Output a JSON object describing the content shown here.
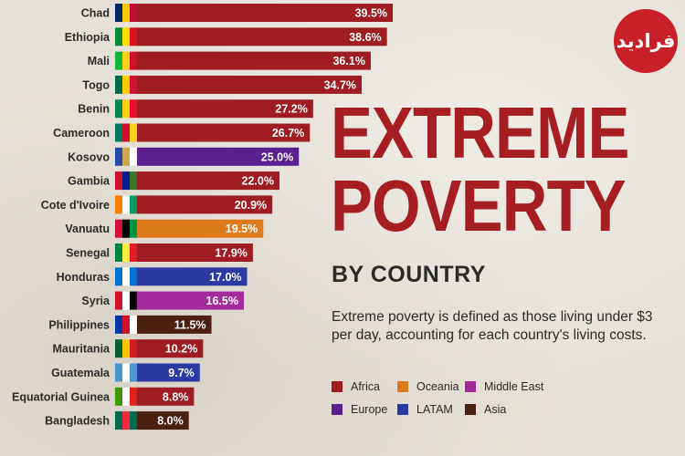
{
  "title": {
    "line1": "EXTREME",
    "line2": "POVERTY"
  },
  "subtitle": "BY COUNTRY",
  "description": "Extreme poverty is defined as those living under $3 per day, accounting for each country's living costs.",
  "logo_text": "فرادید",
  "legend": [
    {
      "name": "Africa",
      "color": "#9e1c22"
    },
    {
      "name": "Oceania",
      "color": "#dd7a1c"
    },
    {
      "name": "Middle East",
      "color": "#a52a9c"
    },
    {
      "name": "Europe",
      "color": "#5a2090"
    },
    {
      "name": "LATAM",
      "color": "#2b3aa3"
    },
    {
      "name": "Asia",
      "color": "#4a2010"
    }
  ],
  "chart_data": {
    "type": "bar",
    "orientation": "horizontal",
    "unit": "%",
    "categories": [
      "Chad",
      "Ethiopia",
      "Mali",
      "Togo",
      "Benin",
      "Cameroon",
      "Kosovo",
      "Gambia",
      "Cote d'Ivoire",
      "Vanuatu",
      "Senegal",
      "Honduras",
      "Syria",
      "Philippines",
      "Mauritania",
      "Guatemala",
      "Equatorial Guinea",
      "Bangladesh"
    ],
    "values": [
      39.5,
      38.6,
      36.1,
      34.7,
      27.2,
      26.7,
      25.0,
      22.0,
      20.9,
      19.5,
      17.9,
      17.0,
      16.5,
      11.5,
      10.2,
      9.7,
      8.8,
      8.0
    ],
    "value_labels": [
      "39.5%",
      "38.6%",
      "36.1%",
      "34.7%",
      "27.2%",
      "26.7%",
      "25.0%",
      "22.0%",
      "20.9%",
      "19.5%",
      "17.9%",
      "17.0%",
      "16.5%",
      "11.5%",
      "10.2%",
      "9.7%",
      "8.8%",
      "8.0%"
    ],
    "regions": [
      "Africa",
      "Africa",
      "Africa",
      "Africa",
      "Africa",
      "Africa",
      "Europe",
      "Africa",
      "Africa",
      "Oceania",
      "Africa",
      "LATAM",
      "Middle East",
      "Asia",
      "Africa",
      "LATAM",
      "Africa",
      "Asia"
    ],
    "flag_colors": [
      [
        "#002664",
        "#fecb00",
        "#c60c30"
      ],
      [
        "#078930",
        "#fcdd09",
        "#da121a"
      ],
      [
        "#14b53a",
        "#fcd116",
        "#ce1126"
      ],
      [
        "#006a4e",
        "#ffce00",
        "#d21034"
      ],
      [
        "#008751",
        "#fcd116",
        "#e8112d"
      ],
      [
        "#007a5e",
        "#ce1126",
        "#fcd116"
      ],
      [
        "#244aa5",
        "#d0a650",
        "#ffffff"
      ],
      [
        "#ce1126",
        "#0c1c8c",
        "#3a7728"
      ],
      [
        "#f77f00",
        "#ffffff",
        "#009e60"
      ],
      [
        "#d21034",
        "#000000",
        "#009543"
      ],
      [
        "#00853f",
        "#fdef42",
        "#e31b23"
      ],
      [
        "#0073cf",
        "#ffffff",
        "#0073cf"
      ],
      [
        "#ce1126",
        "#ffffff",
        "#000000"
      ],
      [
        "#0038a8",
        "#ce1126",
        "#ffffff"
      ],
      [
        "#006233",
        "#ffc400",
        "#d01c1f"
      ],
      [
        "#4997d0",
        "#ffffff",
        "#4997d0"
      ],
      [
        "#3e9a00",
        "#ffffff",
        "#e32118"
      ],
      [
        "#006a4e",
        "#f42a41",
        "#006a4e"
      ]
    ],
    "xlim": [
      0,
      40
    ],
    "grid": false,
    "legend_position": "bottom-right"
  }
}
